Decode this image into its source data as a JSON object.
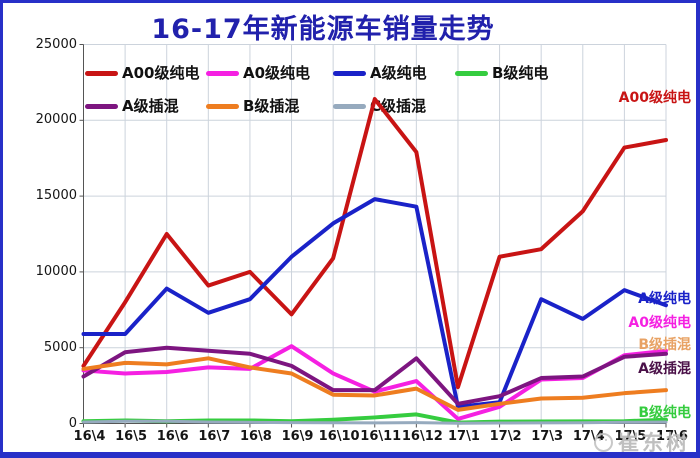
{
  "title": "16-17年新能源车销量走势",
  "watermark": {
    "text": "崔东树"
  },
  "axes": {
    "y_unit": "",
    "x_unit": ""
  },
  "chart_data": {
    "type": "line",
    "title": "16-17年新能源车销量走势",
    "xlabel": "",
    "ylabel": "",
    "ylim": [
      0,
      25000
    ],
    "y_ticks": [
      0,
      5000,
      10000,
      15000,
      20000,
      25000
    ],
    "grid": true,
    "legend_position": "inside-top, two rows",
    "x": [
      "16\\4",
      "16\\5",
      "16\\6",
      "16\\7",
      "16\\8",
      "16\\9",
      "16\\10",
      "16\\11",
      "16\\12",
      "17\\1",
      "17\\2",
      "17\\3",
      "17\\4",
      "17\\5",
      "17\\6"
    ],
    "series": [
      {
        "name": "A00级纯电",
        "color": "#c81414",
        "values": [
          3800,
          8000,
          12500,
          9100,
          10000,
          7200,
          10900,
          21400,
          17900,
          2400,
          11000,
          11500,
          14000,
          18200,
          18700
        ]
      },
      {
        "name": "A0级纯电",
        "color": "#f520e2",
        "values": [
          3500,
          3300,
          3400,
          3700,
          3600,
          5100,
          3300,
          2100,
          2800,
          300,
          1100,
          2900,
          3000,
          4500,
          4800
        ]
      },
      {
        "name": "A级纯电",
        "color": "#1a22c8",
        "values": [
          5900,
          5900,
          8900,
          7300,
          8200,
          11000,
          13200,
          14800,
          14300,
          1100,
          1400,
          8200,
          6900,
          8800,
          7800
        ]
      },
      {
        "name": "B级纯电",
        "color": "#35cc3f",
        "values": [
          150,
          200,
          150,
          200,
          200,
          150,
          250,
          400,
          600,
          60,
          120,
          130,
          140,
          150,
          250
        ]
      },
      {
        "name": "A级插混",
        "color": "#7d1580",
        "values": [
          3100,
          4700,
          5000,
          4800,
          4600,
          3800,
          2200,
          2200,
          4300,
          1300,
          1800,
          3000,
          3100,
          4400,
          4600
        ]
      },
      {
        "name": "B级插混",
        "color": "#ee7d20",
        "values": [
          3600,
          4000,
          3900,
          4300,
          3700,
          3300,
          1900,
          1850,
          2300,
          900,
          1300,
          1650,
          1700,
          2000,
          2200
        ]
      },
      {
        "name": "C级插混",
        "color": "#96aabe",
        "values": [
          100,
          150,
          150,
          100,
          80,
          60,
          50,
          40,
          60,
          20,
          30,
          40,
          50,
          80,
          100
        ]
      }
    ],
    "right_labels": [
      {
        "label": "A00级纯电",
        "color": "#c81414",
        "value": 21500
      },
      {
        "label": "A级纯电",
        "color": "#1a22c8",
        "value": 8200
      },
      {
        "label": "A0级纯电",
        "color": "#f520e2",
        "value": 6650
      },
      {
        "label": "B级插混",
        "color": "#e8a264",
        "value": 5200
      },
      {
        "label": "A级插混",
        "color": "#4a1048",
        "value": 3600
      },
      {
        "label": "B级纯电",
        "color": "#35cc3f",
        "value": 700
      }
    ]
  }
}
